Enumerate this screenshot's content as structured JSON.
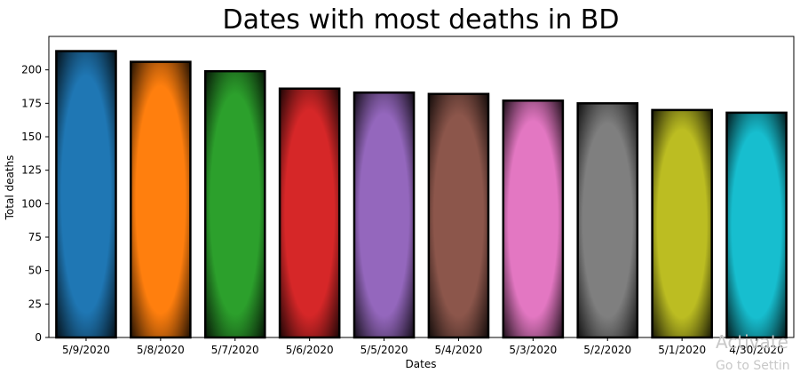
{
  "chart_data": {
    "type": "bar",
    "title": "Dates with most deaths in BD",
    "xlabel": "Dates",
    "ylabel": "Total deaths",
    "categories": [
      "5/9/2020",
      "5/8/2020",
      "5/7/2020",
      "5/6/2020",
      "5/5/2020",
      "5/4/2020",
      "5/3/2020",
      "5/2/2020",
      "5/1/2020",
      "4/30/2020"
    ],
    "values": [
      214,
      206,
      199,
      186,
      183,
      182,
      177,
      175,
      170,
      168
    ],
    "colors": [
      "#1f77b4",
      "#ff7f0e",
      "#2ca02c",
      "#d62728",
      "#9467bd",
      "#8c564b",
      "#e377c2",
      "#7f7f7f",
      "#bcbd22",
      "#17becf"
    ],
    "ylim": [
      0,
      225
    ],
    "yticks": [
      0,
      25,
      50,
      75,
      100,
      125,
      150,
      175,
      200
    ],
    "grid": false,
    "legend": "none"
  },
  "watermark": {
    "line1": "Activate",
    "line2": "Go to Settin"
  }
}
